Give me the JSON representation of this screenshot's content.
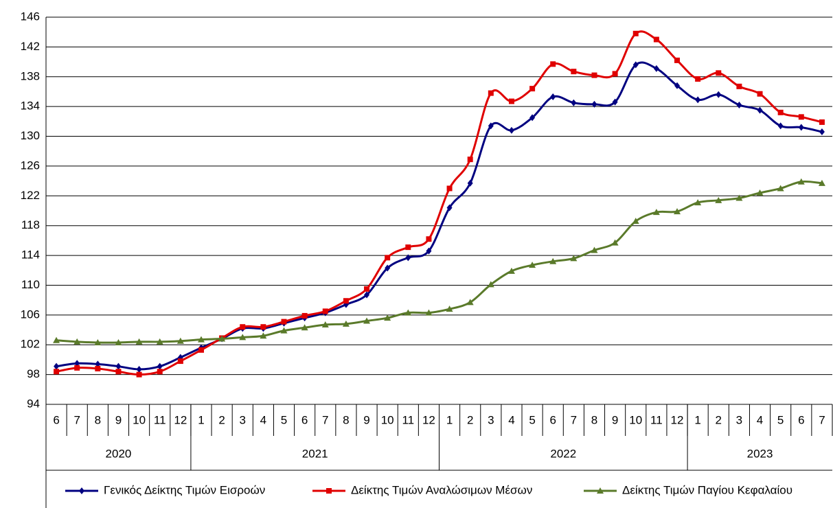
{
  "chart_data": {
    "type": "line",
    "categories": [
      "6",
      "7",
      "8",
      "9",
      "10",
      "11",
      "12",
      "1",
      "2",
      "3",
      "4",
      "5",
      "6",
      "7",
      "8",
      "9",
      "10",
      "11",
      "12",
      "1",
      "2",
      "3",
      "4",
      "5",
      "6",
      "7",
      "8",
      "9",
      "10",
      "11",
      "12",
      "1",
      "2",
      "3",
      "4",
      "5",
      "6",
      "7"
    ],
    "x_groups": [
      "2020",
      "2021",
      "2022",
      "2023"
    ],
    "series": [
      {
        "name": "Γενικός Δείκτης Τιμών Εισροών",
        "color": "#000080",
        "marker": "diamond",
        "values": [
          99.1,
          99.5,
          99.4,
          99.1,
          98.7,
          99.1,
          100.3,
          101.6,
          102.8,
          104.2,
          104.2,
          104.9,
          105.6,
          106.3,
          107.4,
          108.7,
          112.3,
          113.7,
          114.6,
          120.4,
          123.7,
          131.4,
          130.8,
          132.5,
          135.3,
          134.5,
          134.3,
          134.6,
          139.6,
          139.1,
          136.8,
          134.9,
          135.6,
          134.2,
          133.5,
          131.4,
          131.2,
          130.6
        ]
      },
      {
        "name": "Δείκτης Τιμών Αναλώσιμων Μέσων",
        "color": "#e00000",
        "marker": "square",
        "values": [
          98.4,
          98.9,
          98.8,
          98.4,
          98.0,
          98.4,
          99.8,
          101.3,
          102.9,
          104.4,
          104.4,
          105.1,
          105.9,
          106.5,
          107.9,
          109.5,
          113.7,
          115.1,
          116.2,
          123.0,
          126.9,
          135.8,
          134.7,
          136.4,
          139.7,
          138.7,
          138.2,
          138.4,
          143.8,
          143.0,
          140.2,
          137.7,
          138.5,
          136.7,
          135.7,
          133.2,
          132.6,
          131.9
        ]
      },
      {
        "name": "Δείκτης Τιμών Παγίου Κεφαλαίου",
        "color": "#5a7a2a",
        "marker": "triangle",
        "values": [
          102.6,
          102.4,
          102.3,
          102.3,
          102.4,
          102.4,
          102.5,
          102.7,
          102.8,
          103.0,
          103.2,
          103.9,
          104.3,
          104.7,
          104.8,
          105.2,
          105.6,
          106.3,
          106.3,
          106.8,
          107.7,
          110.1,
          111.9,
          112.7,
          113.2,
          113.6,
          114.7,
          115.7,
          118.6,
          119.8,
          119.9,
          121.1,
          121.4,
          121.7,
          122.4,
          123.0,
          123.9,
          123.7
        ]
      }
    ],
    "ylim": [
      94,
      146
    ],
    "yticks": [
      94,
      98,
      102,
      106,
      110,
      114,
      118,
      122,
      126,
      130,
      134,
      138,
      142,
      146
    ],
    "grid": true
  }
}
